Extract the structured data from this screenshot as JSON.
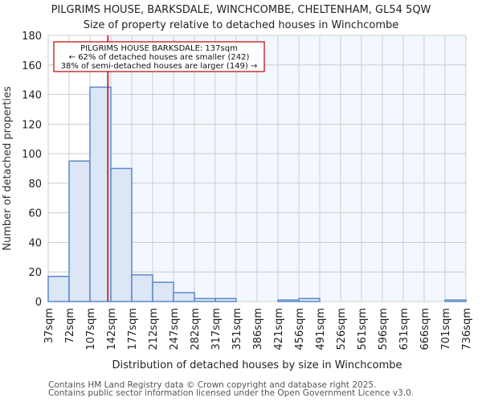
{
  "title": "PILGRIMS HOUSE, BARKSDALE, WINCHCOMBE, CHELTENHAM, GL54 5QW",
  "subtitle": "Size of property relative to detached houses in Winchcombe",
  "footer": {
    "line1": "Contains HM Land Registry data © Crown copyright and database right 2025.",
    "line2": "Contains public sector information licensed under the Open Government Licence v3.0."
  },
  "annotation": {
    "line1": "PILGRIMS HOUSE BARKSDALE: 137sqm",
    "line2": "← 62% of detached houses are smaller (242)",
    "line3": "38% of semi-detached houses are larger (149) →"
  },
  "colors": {
    "bar_fill": "#dce6f4",
    "bar_stroke": "#5b8ac8",
    "marker_line": "#c00000",
    "grid": "#cccccc",
    "highlight_bg": "#f3f7fe"
  },
  "chart_data": {
    "type": "bar",
    "title": "PILGRIMS HOUSE, BARKSDALE, WINCHCOMBE, CHELTENHAM, GL54 5QW",
    "subtitle": "Size of property relative to detached houses in Winchcombe",
    "xlabel": "Distribution of detached houses by size in Winchcombe",
    "ylabel": "Number of detached properties",
    "ylim": [
      0,
      180
    ],
    "yticks": [
      0,
      20,
      40,
      60,
      80,
      100,
      120,
      140,
      160,
      180
    ],
    "grid": true,
    "categories": [
      "37sqm",
      "72sqm",
      "107sqm",
      "142sqm",
      "177sqm",
      "212sqm",
      "247sqm",
      "282sqm",
      "317sqm",
      "351sqm",
      "386sqm",
      "421sqm",
      "456sqm",
      "491sqm",
      "526sqm",
      "561sqm",
      "596sqm",
      "631sqm",
      "666sqm",
      "701sqm",
      "736sqm"
    ],
    "values": [
      17,
      95,
      145,
      90,
      18,
      13,
      6,
      2,
      2,
      0,
      0,
      1,
      2,
      0,
      0,
      0,
      0,
      0,
      0,
      1
    ],
    "marker": {
      "value": 137,
      "label": "PILGRIMS HOUSE BARKSDALE: 137sqm"
    }
  }
}
